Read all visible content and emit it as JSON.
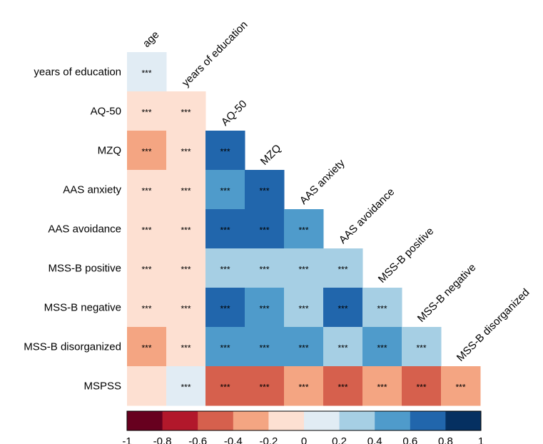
{
  "chart_data": {
    "type": "heatmap",
    "title": "",
    "layout": "lower-triangle correlation matrix",
    "columns": [
      "age",
      "years of education",
      "AQ-50",
      "MZQ",
      "AAS anxiety",
      "AAS avoidance",
      "MSS-B positive",
      "MSS-B negative",
      "MSS-B disorganized"
    ],
    "rows": [
      {
        "label": "years of education",
        "values": [
          0.1
        ],
        "significance": [
          "***"
        ]
      },
      {
        "label": "AQ-50",
        "values": [
          -0.1,
          -0.1
        ],
        "significance": [
          "***",
          "***"
        ]
      },
      {
        "label": "MZQ",
        "values": [
          -0.3,
          -0.1,
          0.7
        ],
        "significance": [
          "***",
          "***",
          "***"
        ]
      },
      {
        "label": "AAS anxiety",
        "values": [
          -0.1,
          -0.1,
          0.5,
          0.7
        ],
        "significance": [
          "***",
          "***",
          "***",
          "***"
        ]
      },
      {
        "label": "AAS avoidance",
        "values": [
          -0.1,
          -0.1,
          0.7,
          0.7,
          0.5
        ],
        "significance": [
          "***",
          "***",
          "***",
          "***",
          "***"
        ]
      },
      {
        "label": "MSS-B positive",
        "values": [
          -0.1,
          -0.1,
          0.3,
          0.3,
          0.3,
          0.3
        ],
        "significance": [
          "***",
          "***",
          "***",
          "***",
          "***",
          "***"
        ]
      },
      {
        "label": "MSS-B negative",
        "values": [
          -0.1,
          -0.1,
          0.7,
          0.5,
          0.3,
          0.7,
          0.3
        ],
        "significance": [
          "***",
          "***",
          "***",
          "***",
          "***",
          "***",
          "***"
        ]
      },
      {
        "label": "MSS-B disorganized",
        "values": [
          -0.3,
          -0.1,
          0.5,
          0.5,
          0.5,
          0.3,
          0.5,
          0.3
        ],
        "significance": [
          "***",
          "***",
          "***",
          "***",
          "***",
          "***",
          "***",
          "***"
        ]
      },
      {
        "label": "MSPSS",
        "values": [
          -0.1,
          0.1,
          -0.5,
          -0.5,
          -0.3,
          -0.5,
          -0.3,
          -0.5,
          -0.3
        ],
        "significance": [
          "",
          "***",
          "***",
          "***",
          "***",
          "***",
          "***",
          "***",
          "***"
        ]
      }
    ],
    "colorbar": {
      "range": [
        -1,
        1
      ],
      "ticks": [
        "-1",
        "-0.8",
        "-0.6",
        "-0.4",
        "-0.2",
        "0",
        "0.2",
        "0.4",
        "0.6",
        "0.8",
        "1"
      ],
      "bins": [
        {
          "from": -1.0,
          "to": -0.8,
          "color": "#67001f"
        },
        {
          "from": -0.8,
          "to": -0.6,
          "color": "#b2182b"
        },
        {
          "from": -0.6,
          "to": -0.4,
          "color": "#d6604d"
        },
        {
          "from": -0.4,
          "to": -0.2,
          "color": "#f4a582"
        },
        {
          "from": -0.2,
          "to": 0.0,
          "color": "#fde0d2"
        },
        {
          "from": 0.0,
          "to": 0.2,
          "color": "#e1ecf4"
        },
        {
          "from": 0.2,
          "to": 0.4,
          "color": "#a6cfe4"
        },
        {
          "from": 0.4,
          "to": 0.6,
          "color": "#4f9bcb"
        },
        {
          "from": 0.6,
          "to": 0.8,
          "color": "#2166ac"
        },
        {
          "from": 0.8,
          "to": 1.0,
          "color": "#053061"
        }
      ]
    }
  }
}
